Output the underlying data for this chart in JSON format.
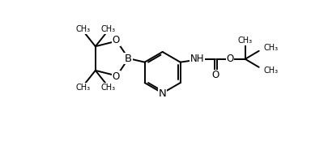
{
  "bg_color": "#ffffff",
  "line_color": "#000000",
  "lw": 1.4,
  "fs": 8.5,
  "figsize": [
    3.84,
    1.8
  ],
  "dpi": 100,
  "xlim": [
    0,
    384
  ],
  "ylim": [
    0,
    180
  ]
}
